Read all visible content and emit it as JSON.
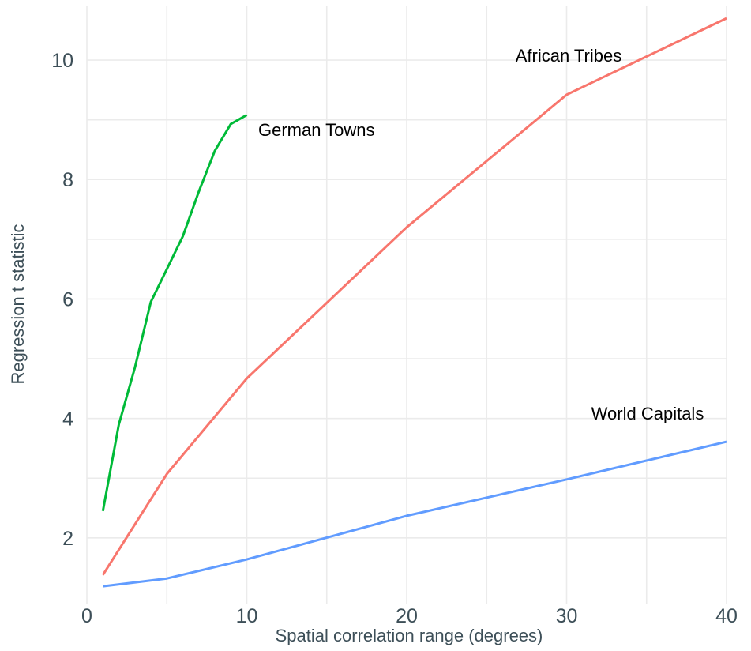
{
  "chart_data": {
    "type": "line",
    "title": "",
    "xlabel": "Spatial correlation range (degrees)",
    "ylabel": "Regression t statistic",
    "xlim": [
      0,
      40
    ],
    "ylim": [
      0.9,
      10.9
    ],
    "xticks": [
      0,
      10,
      20,
      30,
      40
    ],
    "yticks": [
      2,
      4,
      6,
      8,
      10
    ],
    "grid": true,
    "legend": "none",
    "series": [
      {
        "name": "German Towns",
        "color": "#00ba38",
        "x": [
          1,
          2,
          3,
          4,
          5,
          6,
          7,
          8,
          9,
          10
        ],
        "y": [
          2.45,
          3.9,
          4.85,
          5.95,
          6.5,
          7.05,
          7.8,
          8.48,
          8.93,
          9.08
        ]
      },
      {
        "name": "African Tribes",
        "color": "#f8766d",
        "x": [
          1,
          5,
          10,
          20,
          30,
          40
        ],
        "y": [
          1.38,
          3.07,
          4.67,
          7.2,
          9.42,
          10.7
        ]
      },
      {
        "name": "World Capitals",
        "color": "#619cff",
        "x": [
          1,
          5,
          10,
          20,
          30,
          40
        ],
        "y": [
          1.19,
          1.32,
          1.64,
          2.37,
          2.98,
          3.61
        ]
      }
    ]
  }
}
